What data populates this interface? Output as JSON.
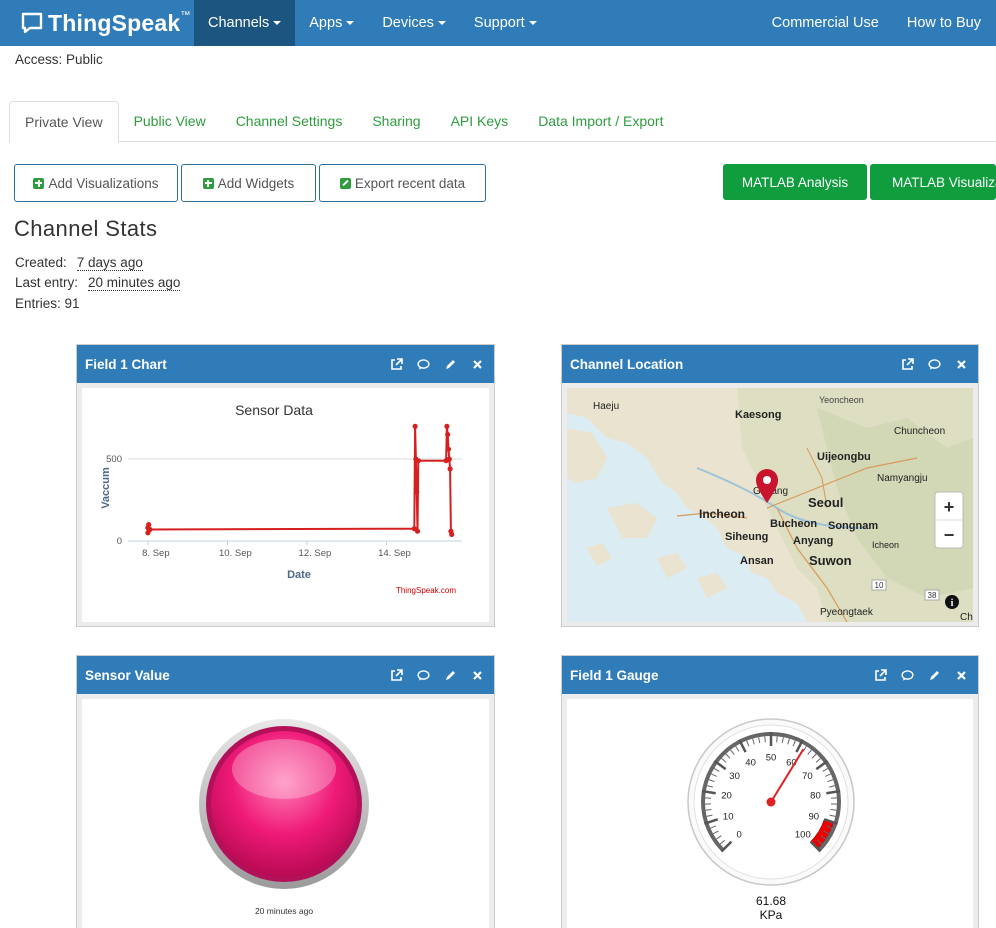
{
  "brand": {
    "name": "ThingSpeak",
    "tm": "™"
  },
  "nav": {
    "items": [
      {
        "label": "Channels"
      },
      {
        "label": "Apps"
      },
      {
        "label": "Devices"
      },
      {
        "label": "Support"
      }
    ],
    "right": [
      {
        "label": "Commercial Use"
      },
      {
        "label": "How to Buy"
      }
    ]
  },
  "access": "Access: Public",
  "tabs": [
    {
      "label": "Private View"
    },
    {
      "label": "Public View"
    },
    {
      "label": "Channel Settings"
    },
    {
      "label": "Sharing"
    },
    {
      "label": "API Keys"
    },
    {
      "label": "Data Import / Export"
    }
  ],
  "buttons": {
    "add_visualizations": "Add Visualizations",
    "add_widgets": "Add Widgets",
    "export_recent": "Export recent data",
    "matlab_analysis": "MATLAB Analysis",
    "matlab_visualizations": "MATLAB Visualizations"
  },
  "stats": {
    "title": "Channel Stats",
    "created_label": "Created:",
    "created_value": "7 days ago",
    "last_entry_label": "Last entry:",
    "last_entry_value": "20 minutes ago",
    "entries": "Entries: 91"
  },
  "panels": {
    "field1_chart": "Field 1 Chart",
    "location": "Channel Location",
    "sensor_value": "Sensor Value",
    "gauge": "Field 1 Gauge"
  },
  "chart_data": {
    "type": "line",
    "title": "Sensor Data",
    "xlabel": "Date",
    "ylabel": "Vaccum",
    "credit": "ThingSpeak.com",
    "x_ticks": [
      "8. Sep",
      "10. Sep",
      "12. Sep",
      "14. Sep"
    ],
    "y_ticks": [
      0,
      500
    ],
    "ylim": [
      0,
      720
    ],
    "xlim": [
      7.5,
      15.9
    ],
    "color": "#d62020",
    "series": [
      {
        "points": [
          [
            8.0,
            80
          ],
          [
            8.0,
            50
          ],
          [
            8.02,
            100
          ],
          [
            8.05,
            70
          ],
          [
            14.7,
            75
          ],
          [
            14.72,
            700
          ],
          [
            14.74,
            500
          ],
          [
            14.76,
            300
          ],
          [
            14.78,
            60
          ],
          [
            14.8,
            490
          ],
          [
            15.5,
            490
          ],
          [
            15.52,
            700
          ],
          [
            15.54,
            650
          ],
          [
            15.56,
            560
          ],
          [
            15.58,
            500
          ],
          [
            15.6,
            440
          ],
          [
            15.62,
            60
          ],
          [
            15.64,
            40
          ]
        ]
      }
    ]
  },
  "map": {
    "labels": [
      "Haeju",
      "Kaesong",
      "Yeoncheon",
      "Chuncheon",
      "Uijeongbu",
      "Namyangju",
      "Goyang",
      "Seoul",
      "Incheon",
      "Bucheon",
      "Songnam",
      "Siheung",
      "Anyang",
      "Icheon",
      "Ansan",
      "Suwon",
      "Pyeongtaek",
      "Ch"
    ],
    "zoom_in": "+",
    "zoom_out": "−",
    "info": "i",
    "route_badges": [
      "10",
      "38"
    ]
  },
  "lamp": {
    "color": "#e8136e",
    "timestamp": "20 minutes ago"
  },
  "gauge": {
    "value": 61.68,
    "value_text": "61.68",
    "unit": "KPa",
    "min": 0,
    "max": 100,
    "ticks": [
      0,
      10,
      20,
      30,
      40,
      50,
      60,
      70,
      80,
      90,
      100
    ],
    "danger_from": 90
  }
}
